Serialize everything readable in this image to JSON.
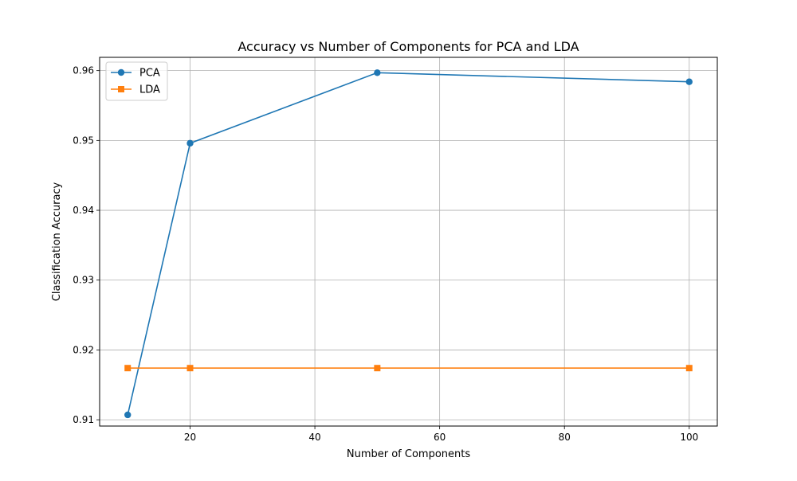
{
  "chart_data": {
    "type": "line",
    "title": "Accuracy vs Number of Components for PCA and LDA",
    "xlabel": "Number of Components",
    "ylabel": "Classification Accuracy",
    "x": [
      10,
      20,
      50,
      100
    ],
    "xlim": [
      5.5,
      104.5
    ],
    "ylim": [
      0.9091,
      0.9619
    ],
    "xticks": [
      20,
      40,
      60,
      80,
      100
    ],
    "yticks": [
      0.91,
      0.92,
      0.93,
      0.94,
      0.95,
      0.96
    ],
    "xtick_labels": [
      "20",
      "40",
      "60",
      "80",
      "100"
    ],
    "ytick_labels": [
      "0.91",
      "0.92",
      "0.93",
      "0.94",
      "0.95",
      "0.96"
    ],
    "grid": true,
    "legend_position": "top-left",
    "series": [
      {
        "name": "PCA",
        "values": [
          0.9107,
          0.9496,
          0.9597,
          0.9584
        ],
        "color": "#1f77b4",
        "marker": "circle"
      },
      {
        "name": "LDA",
        "values": [
          0.9174,
          0.9174,
          0.9174,
          0.9174
        ],
        "color": "#ff7f0e",
        "marker": "square"
      }
    ]
  }
}
